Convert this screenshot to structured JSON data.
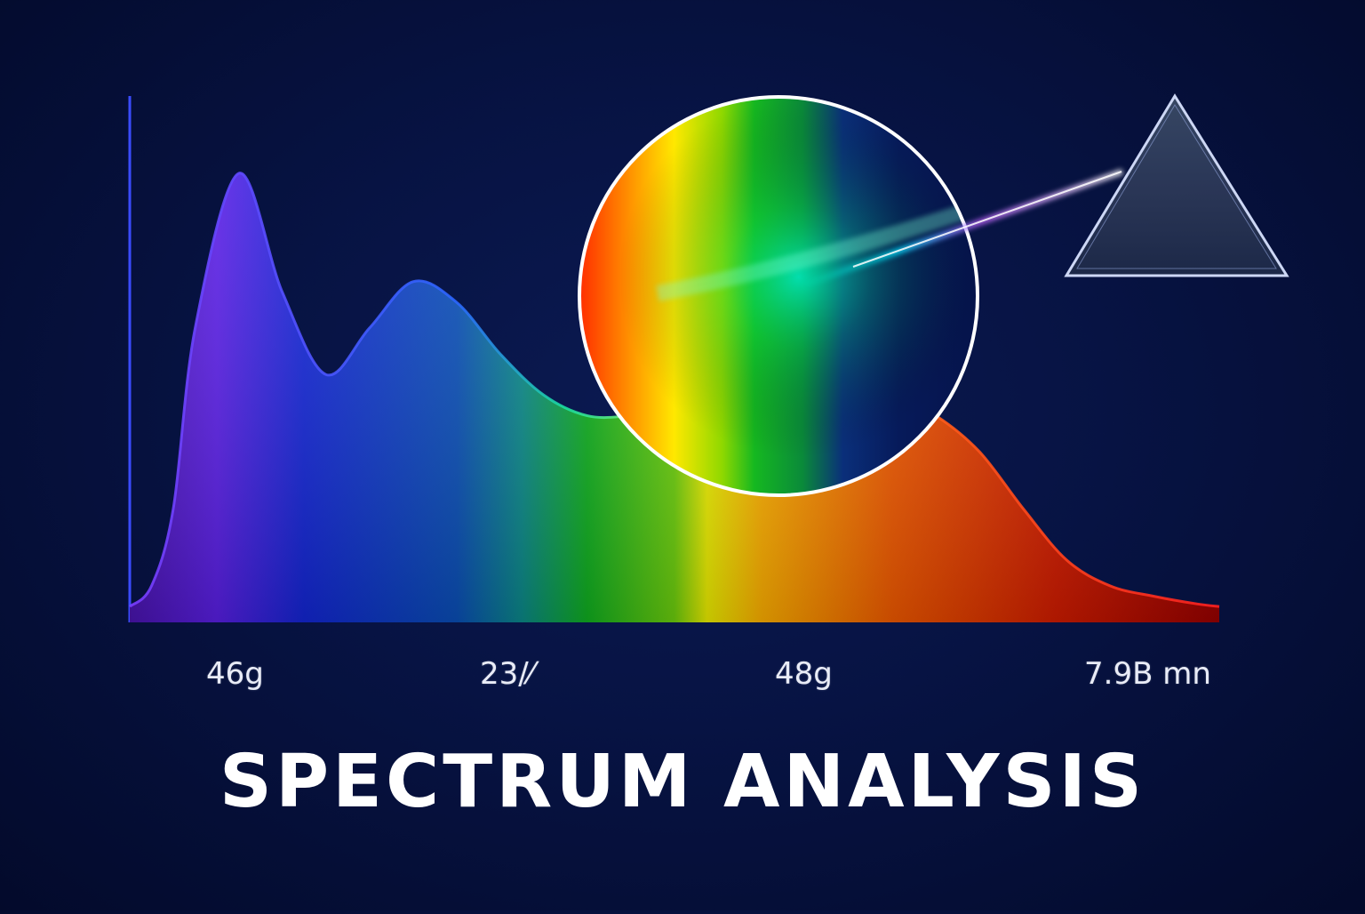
{
  "chart_data": {
    "type": "area",
    "title": "SPECTRUM ANALYSIS",
    "xlabel": "",
    "ylabel": "",
    "tick_labels": [
      "46g",
      "23/⁄",
      "48g",
      "7.9B mn"
    ],
    "x": [
      0,
      0.02,
      0.04,
      0.06,
      0.1,
      0.14,
      0.18,
      0.22,
      0.26,
      0.3,
      0.34,
      0.38,
      0.42,
      0.46,
      0.5,
      0.54,
      0.58,
      0.62,
      0.66,
      0.7,
      0.74,
      0.78,
      0.82,
      0.86,
      0.9,
      0.94,
      0.98,
      1
    ],
    "values": [
      0.01,
      0.05,
      0.2,
      0.55,
      0.85,
      0.62,
      0.46,
      0.55,
      0.64,
      0.6,
      0.5,
      0.42,
      0.38,
      0.38,
      0.39,
      0.4,
      0.41,
      0.42,
      0.43,
      0.42,
      0.38,
      0.31,
      0.2,
      0.1,
      0.05,
      0.03,
      0.015,
      0.01
    ],
    "ylim": [
      0,
      1
    ],
    "grid": false,
    "colors": [
      "#6a1fe0",
      "#1030d8",
      "#0b8a8a",
      "#14c21a",
      "#e6f000",
      "#ff9a00",
      "#e63000",
      "#b00000"
    ]
  }
}
